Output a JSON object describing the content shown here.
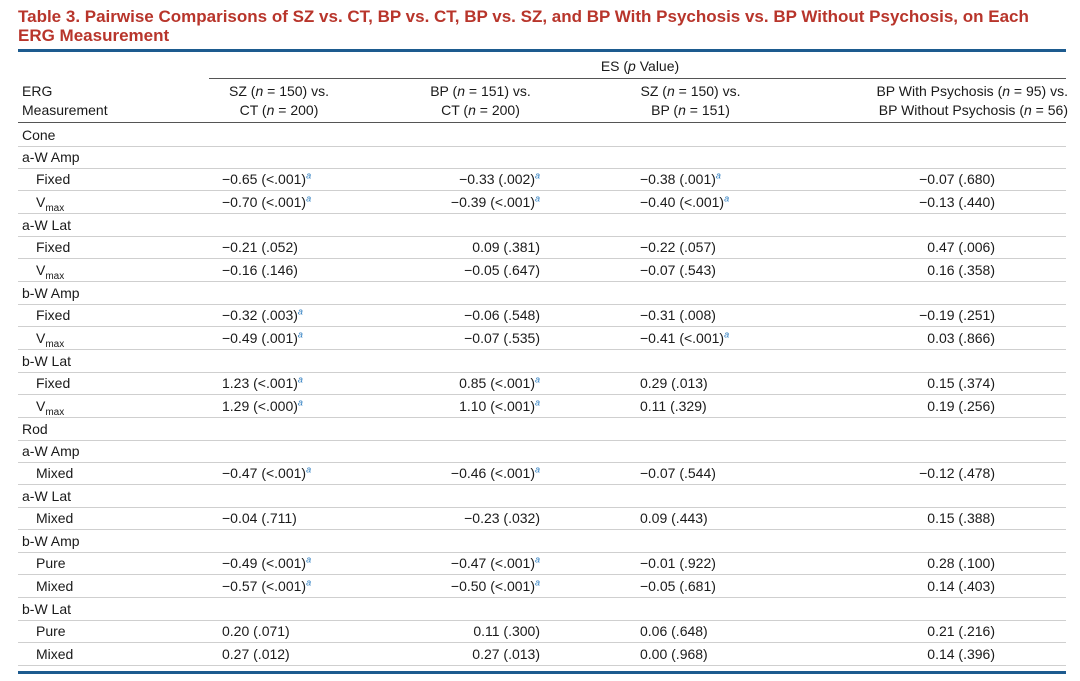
{
  "title": "Table 3.  Pairwise Comparisons of SZ vs. CT, BP vs. CT, BP vs. SZ, and BP With Psychosis vs. BP Without Psychosis, on Each ERG Measurement",
  "spanner": "ES (p Value)",
  "headers": {
    "col0_line1": "ERG",
    "col0_line2": "Measurement",
    "col1_line1": "SZ (n = 150) vs.",
    "col1_line2": "CT (n = 200)",
    "col2_line1": "BP (n = 151) vs.",
    "col2_line2": "CT (n = 200)",
    "col3_line1": "SZ (n = 150) vs.",
    "col3_line2": "BP (n = 151)",
    "col4_line1": "BP With Psychosis (n = 95) vs.",
    "col4_line2": "BP Without Psychosis (n = 56)"
  },
  "footnote_marker": "a",
  "rows": [
    {
      "kind": "section",
      "label": "Cone"
    },
    {
      "kind": "group",
      "label": "a-W Amp"
    },
    {
      "kind": "data",
      "label": "Fixed",
      "v1": "−0.65 (<.001)",
      "s1": true,
      "v2": "−0.33 (.002)",
      "s2": true,
      "v3": "−0.38 (.001)",
      "s3": true,
      "v4": "−0.07 (.680)",
      "s4": false
    },
    {
      "kind": "data",
      "label": "V",
      "sub": "max",
      "v1": "−0.70 (<.001)",
      "s1": true,
      "v2": "−0.39 (<.001)",
      "s2": true,
      "v3": "−0.40 (<.001)",
      "s3": true,
      "v4": "−0.13 (.440)",
      "s4": false
    },
    {
      "kind": "group",
      "label": "a-W Lat"
    },
    {
      "kind": "data",
      "label": "Fixed",
      "v1": "−0.21 (.052)",
      "s1": false,
      "v2": "0.09 (.381)",
      "s2": false,
      "v3": "−0.22 (.057)",
      "s3": false,
      "v4": "0.47 (.006)",
      "s4": false
    },
    {
      "kind": "data",
      "label": "V",
      "sub": "max",
      "v1": "−0.16 (.146)",
      "s1": false,
      "v2": "−0.05 (.647)",
      "s2": false,
      "v3": "−0.07 (.543)",
      "s3": false,
      "v4": "0.16 (.358)",
      "s4": false
    },
    {
      "kind": "group",
      "label": "b-W Amp"
    },
    {
      "kind": "data",
      "label": "Fixed",
      "v1": "−0.32 (.003)",
      "s1": true,
      "v2": "−0.06 (.548)",
      "s2": false,
      "v3": "−0.31 (.008)",
      "s3": false,
      "v4": "−0.19 (.251)",
      "s4": false
    },
    {
      "kind": "data",
      "label": "V",
      "sub": "max",
      "v1": "−0.49 (.001)",
      "s1": true,
      "v2": "−0.07 (.535)",
      "s2": false,
      "v3": "−0.41 (<.001)",
      "s3": true,
      "v4": "0.03 (.866)",
      "s4": false
    },
    {
      "kind": "group",
      "label": "b-W Lat"
    },
    {
      "kind": "data",
      "label": "Fixed",
      "v1": "1.23 (<.001)",
      "s1": true,
      "v2": "0.85 (<.001)",
      "s2": true,
      "v3": "0.29 (.013)",
      "s3": false,
      "v4": "0.15 (.374)",
      "s4": false
    },
    {
      "kind": "data",
      "label": "V",
      "sub": "max",
      "v1": "1.29 (<.000)",
      "s1": true,
      "v2": "1.10 (<.001)",
      "s2": true,
      "v3": "0.11 (.329)",
      "s3": false,
      "v4": "0.19 (.256)",
      "s4": false
    },
    {
      "kind": "section",
      "label": "Rod"
    },
    {
      "kind": "group",
      "label": "a-W Amp"
    },
    {
      "kind": "data",
      "label": "Mixed",
      "v1": "−0.47 (<.001)",
      "s1": true,
      "v2": "−0.46 (<.001)",
      "s2": true,
      "v3": "−0.07 (.544)",
      "s3": false,
      "v4": "−0.12 (.478)",
      "s4": false
    },
    {
      "kind": "group",
      "label": "a-W Lat"
    },
    {
      "kind": "data",
      "label": "Mixed",
      "v1": "−0.04 (.711)",
      "s1": false,
      "v2": "−0.23 (.032)",
      "s2": false,
      "v3": "0.09 (.443)",
      "s3": false,
      "v4": "0.15 (.388)",
      "s4": false
    },
    {
      "kind": "group",
      "label": "b-W Amp"
    },
    {
      "kind": "data",
      "label": "Pure",
      "v1": "−0.49 (<.001)",
      "s1": true,
      "v2": "−0.47 (<.001)",
      "s2": true,
      "v3": "−0.01 (.922)",
      "s3": false,
      "v4": "0.28 (.100)",
      "s4": false
    },
    {
      "kind": "data",
      "label": "Mixed",
      "v1": "−0.57 (<.001)",
      "s1": true,
      "v2": "−0.50 (<.001)",
      "s2": true,
      "v3": "−0.05 (.681)",
      "s3": false,
      "v4": "0.14 (.403)",
      "s4": false
    },
    {
      "kind": "group",
      "label": "b-W Lat"
    },
    {
      "kind": "data",
      "label": "Pure",
      "v1": "0.20 (.071)",
      "s1": false,
      "v2": "0.11 (.300)",
      "s2": false,
      "v3": "0.06 (.648)",
      "s3": false,
      "v4": "0.21 (.216)",
      "s4": false
    },
    {
      "kind": "data",
      "label": "Mixed",
      "v1": "0.27 (.012)",
      "s1": false,
      "v2": "0.27 (.013)",
      "s2": false,
      "v3": "0.00 (.968)",
      "s3": false,
      "v4": "0.14 (.396)",
      "s4": false
    }
  ]
}
